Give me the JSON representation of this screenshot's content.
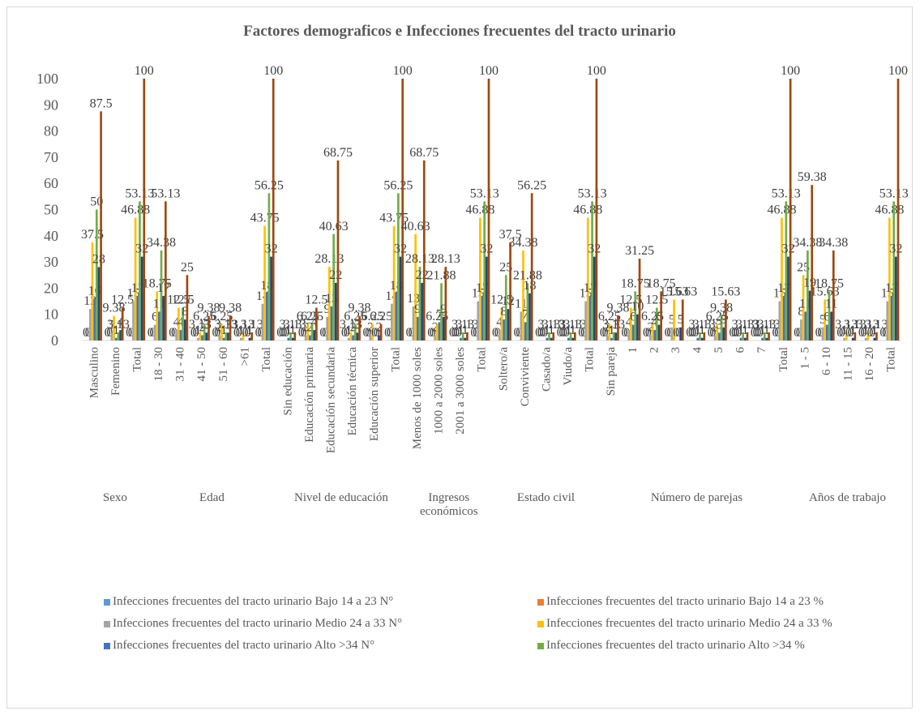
{
  "chart_data": {
    "type": "bar",
    "title": "Factores demograficos e Infecciones frecuentes del tracto urinario",
    "categories": [
      "Masculino",
      "Femenino",
      "Total",
      "18 - 30",
      "31 - 40",
      "41 - 50",
      "51 - 60",
      ">61",
      "Total",
      "Sin educación",
      "Educación primaria",
      "Educación secundaria",
      "Educación técnica",
      "Educación superior",
      "Total",
      "Menos de 1000 soles",
      "1000 a 2000 soles",
      "2001 a 3000 soles",
      "Total",
      "Soltero/a",
      "Conviviente",
      "Casado/a",
      "Viudo/a",
      "Total",
      "Sin pareja",
      "1",
      "2",
      "3",
      "4",
      "5",
      "6",
      "7",
      "Total",
      "1 - 5",
      "6 - 10",
      "11 - 15",
      "16 - 20",
      "Total"
    ],
    "groups": [
      {
        "name": "Sexo",
        "count": 3
      },
      {
        "name": "Edad",
        "count": 6
      },
      {
        "name": "Nivel de educación",
        "count": 6
      },
      {
        "name": "Ingresos económicos",
        "count": 4
      },
      {
        "name": "Estado civil",
        "count": 5
      },
      {
        "name": "Número de parejas",
        "count": 9
      },
      {
        "name": "Años de trabajo",
        "count": 5
      }
    ],
    "series": [
      {
        "name": "Infecciones frecuentes del tracto urinario Bajo 14 a 23 N°",
        "color": "#5b9bd5",
        "values": [
          0,
          0,
          0,
          0,
          0,
          0,
          0,
          0,
          0,
          0,
          0,
          0,
          0,
          0,
          0,
          0,
          0,
          0,
          0,
          0,
          0,
          0,
          0,
          0,
          0,
          0,
          0,
          0,
          0,
          0,
          0,
          0,
          0,
          0,
          0,
          0,
          0,
          0
        ]
      },
      {
        "name": "Infecciones frecuentes del tracto urinario Bajo 14 a 23 %",
        "color": "#ed7d31",
        "values": [
          0,
          0,
          0,
          0,
          0,
          0,
          0,
          0,
          0,
          0,
          0,
          0,
          0,
          0,
          0,
          0,
          0,
          0,
          0,
          0,
          0,
          0,
          0,
          0,
          0,
          0,
          0,
          0,
          0,
          0,
          0,
          0,
          0,
          0,
          0,
          0,
          0,
          0
        ]
      },
      {
        "name": "Infecciones frecuentes del tracto urinario Medio 24 a 33 N°",
        "color": "#a5a5a5",
        "values": [
          12,
          3,
          15,
          6,
          4,
          1,
          2,
          1,
          14,
          0,
          2,
          9,
          1,
          2,
          14,
          13,
          2,
          0,
          15,
          4,
          11,
          0,
          0,
          15,
          2,
          4,
          2,
          5,
          0,
          2,
          0,
          0,
          15,
          8,
          5,
          1,
          1,
          15
        ]
      },
      {
        "name": "Infecciones frecuentes del tracto urinario Medio 24 a 33 %",
        "color": "#ffc000",
        "values": [
          37.5,
          9.38,
          46.88,
          18.75,
          12.5,
          3.13,
          6.25,
          3.13,
          43.75,
          0,
          6.25,
          28.13,
          3.13,
          6.25,
          43.75,
          40.63,
          6.25,
          0,
          46.88,
          12.5,
          34.38,
          0,
          0,
          46.88,
          6.25,
          12.5,
          6.25,
          15.63,
          0,
          6.25,
          0,
          0,
          46.88,
          25,
          15.63,
          3.13,
          3.13,
          46.88
        ]
      },
      {
        "name": "Infecciones frecuentes del tracto urinario Alto >34 N°",
        "color": "#4472c4",
        "values": [
          16,
          1,
          17,
          11,
          4,
          2,
          1,
          0,
          18,
          1,
          2,
          13,
          2,
          0,
          18,
          9,
          7,
          1,
          17,
          8,
          7,
          1,
          1,
          17,
          1,
          6,
          4,
          0,
          1,
          3,
          1,
          1,
          17,
          11,
          6,
          0,
          0,
          17
        ]
      },
      {
        "name": "Infecciones frecuentes del tracto urinario Alto >34 %",
        "color": "#70ad47",
        "values": [
          50,
          3.13,
          53.13,
          34.38,
          12.5,
          6.25,
          3.13,
          0,
          56.25,
          3.13,
          6.25,
          40.63,
          6.25,
          0,
          56.25,
          28.13,
          21.88,
          3.13,
          53.13,
          25,
          21.88,
          3.13,
          3.13,
          53.13,
          3.13,
          18.75,
          12.5,
          0,
          3.13,
          9.38,
          3.13,
          3.13,
          53.13,
          34.38,
          18.75,
          0,
          0,
          53.13
        ]
      },
      {
        "color": "#264478",
        "values": [
          28,
          4,
          32,
          17,
          8,
          3,
          3,
          1,
          32,
          1,
          4,
          22,
          3,
          2,
          32,
          22,
          9,
          1,
          32,
          12,
          18,
          1,
          1,
          32,
          3,
          10,
          6,
          5,
          1,
          5,
          1,
          1,
          32,
          19,
          11,
          1,
          1,
          32
        ]
      },
      {
        "color": "#9e480e",
        "values": [
          87.5,
          12.5,
          100,
          53.13,
          25,
          9.38,
          9.38,
          3.13,
          100,
          3.13,
          12.5,
          68.75,
          9.38,
          6.25,
          100,
          68.75,
          28.13,
          3.13,
          100,
          37.5,
          56.25,
          3.13,
          3.13,
          100,
          9.38,
          31.25,
          18.75,
          15.63,
          3.13,
          15.63,
          3.13,
          3.13,
          100,
          59.38,
          34.38,
          3.13,
          3.13,
          100
        ]
      }
    ],
    "ylim": [
      0,
      100
    ],
    "yticks": [
      0,
      10,
      20,
      30,
      40,
      50,
      60,
      70,
      80,
      90,
      100
    ],
    "grid": false
  }
}
